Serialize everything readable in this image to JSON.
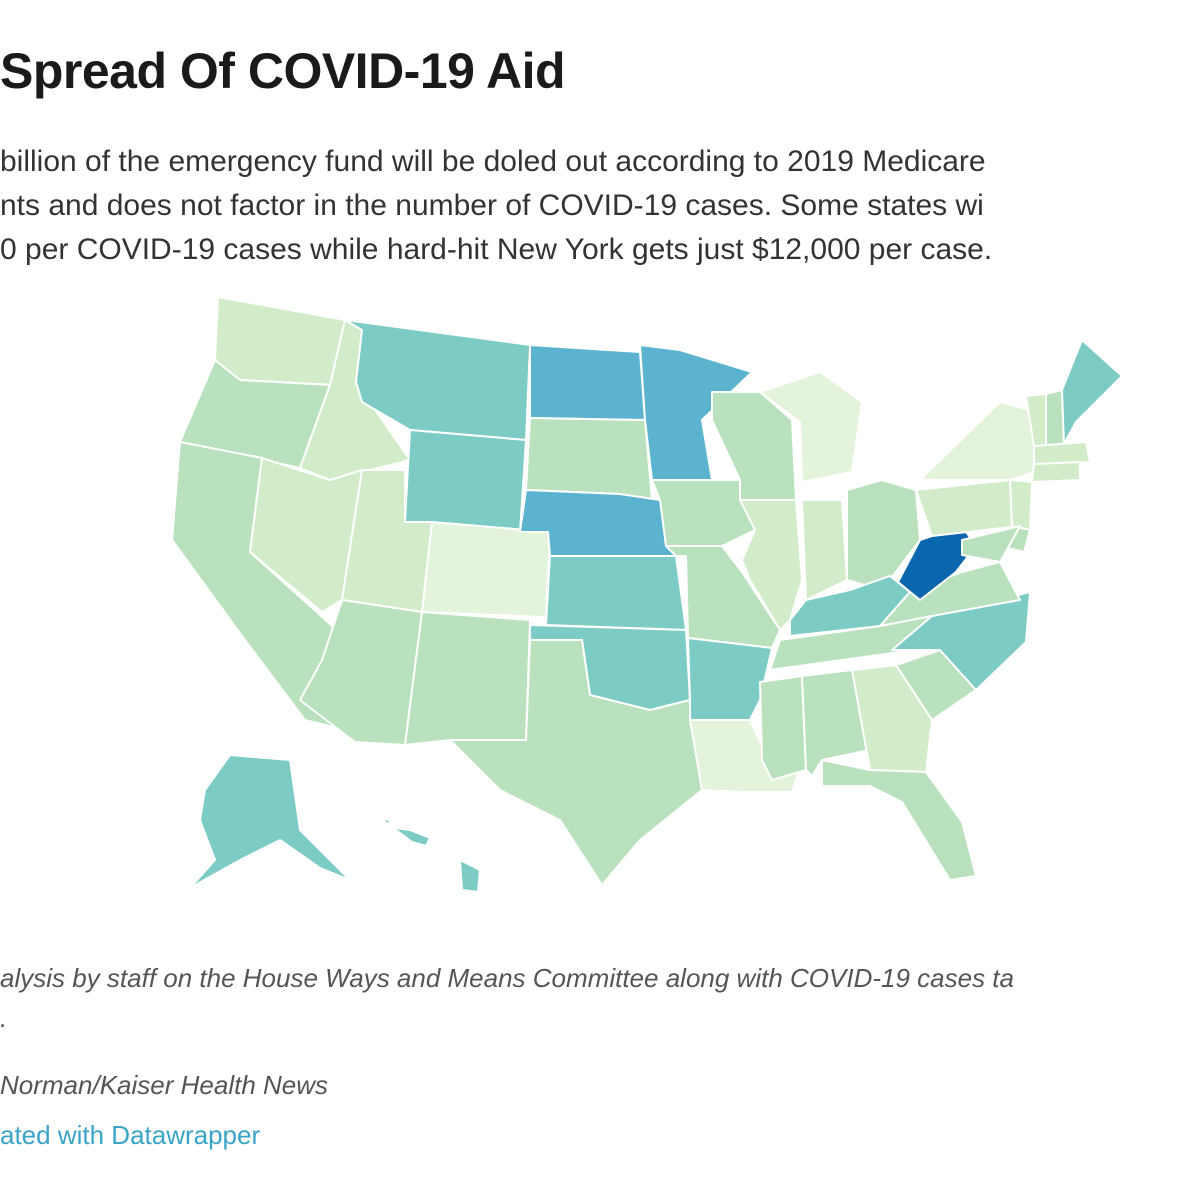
{
  "header": {
    "title": "Spread Of COVID-19 Aid",
    "description_lines": [
      "billion of the emergency fund will be doled out according to 2019 Medicare",
      "nts and does not factor in the number of COVID-19 cases. Some states wi",
      "0 per COVID-19 cases while hard-hit New York gets just $12,000 per case."
    ]
  },
  "map": {
    "palette": [
      "#e4f3dc",
      "#d2ebc8",
      "#b9e1bd",
      "#7ccbc4",
      "#5cb3d0",
      "#0b67ad"
    ],
    "states": {
      "WA": 1,
      "OR": 2,
      "CA": 2,
      "ID": 1,
      "NV": 1,
      "MT": 3,
      "WY": 3,
      "UT": 1,
      "CO": 0,
      "AZ": 2,
      "NM": 2,
      "ND": 4,
      "SD": 2,
      "NE": 4,
      "KS": 3,
      "OK": 3,
      "TX": 2,
      "MN": 4,
      "IA": 2,
      "MO": 2,
      "AR": 3,
      "LA": 0,
      "WI": 2,
      "IL": 1,
      "MI": 0,
      "IN": 1,
      "OH": 2,
      "KY": 3,
      "TN": 2,
      "MS": 2,
      "AL": 2,
      "GA": 1,
      "FL": 2,
      "SC": 2,
      "NC": 3,
      "VA": 2,
      "WV": 5,
      "PA": 1,
      "NY": 0,
      "VT": 1,
      "NH": 2,
      "ME": 3,
      "MA": 1,
      "CT": 1,
      "NJ": 1,
      "DE": 2,
      "MD": 2,
      "AK": 3,
      "HI": 3
    }
  },
  "footer": {
    "notes_lines": [
      "alysis by staff on the House Ways and Means Committee along with COVID-19 cases ta",
      "."
    ],
    "byline": "Norman/Kaiser Health News",
    "credit": "ated with Datawrapper"
  }
}
